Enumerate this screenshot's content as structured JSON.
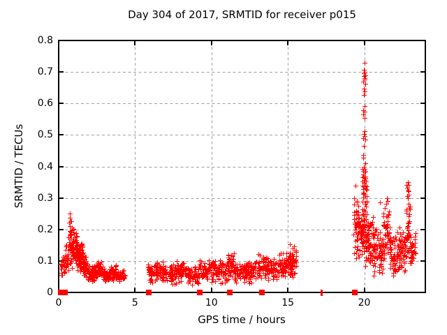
{
  "chart_data": {
    "type": "scatter",
    "title": "Day 304 of 2017, SRMTID for receiver p015",
    "xlabel": "GPS time / hours",
    "ylabel": "SRMTID / TECUs",
    "xlim": [
      0,
      24
    ],
    "ylim": [
      0,
      0.8
    ],
    "xticks": [
      0,
      5,
      10,
      15,
      20
    ],
    "yticks": [
      0,
      0.1,
      0.2,
      0.3,
      0.4,
      0.5,
      0.6,
      0.7,
      0.8
    ],
    "xtick_labels": [
      "0",
      "5",
      "10",
      "15",
      "20"
    ],
    "ytick_labels": [
      "0",
      "0.1",
      "0.2",
      "0.3",
      "0.4",
      "0.5",
      "0.6",
      "0.7",
      "0.8"
    ],
    "grid": {
      "show": true,
      "style": "dashed",
      "color": "#9e9e9e"
    },
    "marker": {
      "shape": "plus",
      "color": "#ff0000",
      "size": 7
    },
    "frame_color": "#000000",
    "legend": null,
    "seed": 20171304,
    "clusters": [
      {
        "x0": 0.1,
        "x1": 0.45,
        "ylo": 0.05,
        "yhi": 0.13,
        "n": 25
      },
      {
        "x0": 0.45,
        "x1": 0.65,
        "ylo": 0.05,
        "yhi": 0.16,
        "n": 25
      },
      {
        "x0": 0.65,
        "x1": 0.85,
        "ylo": 0.08,
        "yhi": 0.24,
        "n": 22
      },
      {
        "x0": 0.8,
        "x1": 1.2,
        "ylo": 0.07,
        "yhi": 0.21,
        "n": 70
      },
      {
        "x0": 1.2,
        "x1": 1.6,
        "ylo": 0.06,
        "yhi": 0.17,
        "n": 70
      },
      {
        "x0": 1.6,
        "x1": 1.9,
        "ylo": 0.04,
        "yhi": 0.12,
        "n": 45
      },
      {
        "x0": 1.9,
        "x1": 2.4,
        "ylo": 0.03,
        "yhi": 0.09,
        "n": 60
      },
      {
        "x0": 2.4,
        "x1": 2.9,
        "ylo": 0.035,
        "yhi": 0.105,
        "n": 55
      },
      {
        "x0": 2.9,
        "x1": 3.4,
        "ylo": 0.03,
        "yhi": 0.08,
        "n": 50
      },
      {
        "x0": 3.4,
        "x1": 3.8,
        "ylo": 0.035,
        "yhi": 0.09,
        "n": 45
      },
      {
        "x0": 3.8,
        "x1": 4.35,
        "ylo": 0.03,
        "yhi": 0.075,
        "n": 45
      },
      {
        "x0": 5.85,
        "x1": 6.4,
        "ylo": 0.025,
        "yhi": 0.1,
        "n": 50
      },
      {
        "x0": 6.4,
        "x1": 7.0,
        "ylo": 0.03,
        "yhi": 0.11,
        "n": 55
      },
      {
        "x0": 7.0,
        "x1": 7.7,
        "ylo": 0.025,
        "yhi": 0.095,
        "n": 55
      },
      {
        "x0": 7.7,
        "x1": 8.4,
        "ylo": 0.03,
        "yhi": 0.105,
        "n": 55
      },
      {
        "x0": 8.4,
        "x1": 9.15,
        "ylo": 0.02,
        "yhi": 0.09,
        "n": 55
      },
      {
        "x0": 9.2,
        "x1": 9.9,
        "ylo": 0.03,
        "yhi": 0.105,
        "n": 55
      },
      {
        "x0": 9.9,
        "x1": 10.6,
        "ylo": 0.03,
        "yhi": 0.11,
        "n": 55
      },
      {
        "x0": 10.6,
        "x1": 11.1,
        "ylo": 0.025,
        "yhi": 0.1,
        "n": 40
      },
      {
        "x0": 11.1,
        "x1": 11.5,
        "ylo": 0.04,
        "yhi": 0.145,
        "n": 40
      },
      {
        "x0": 11.5,
        "x1": 12.3,
        "ylo": 0.03,
        "yhi": 0.1,
        "n": 60
      },
      {
        "x0": 12.3,
        "x1": 13.0,
        "ylo": 0.025,
        "yhi": 0.105,
        "n": 55
      },
      {
        "x0": 13.0,
        "x1": 13.6,
        "ylo": 0.035,
        "yhi": 0.13,
        "n": 50
      },
      {
        "x0": 13.6,
        "x1": 14.3,
        "ylo": 0.03,
        "yhi": 0.11,
        "n": 55
      },
      {
        "x0": 14.3,
        "x1": 14.9,
        "ylo": 0.035,
        "yhi": 0.13,
        "n": 50
      },
      {
        "x0": 14.9,
        "x1": 15.3,
        "ylo": 0.04,
        "yhi": 0.14,
        "n": 40
      },
      {
        "x0": 15.1,
        "x1": 15.55,
        "ylo": 0.05,
        "yhi": 0.165,
        "n": 35
      },
      {
        "x0": 19.3,
        "x1": 19.55,
        "ylo": 0.1,
        "yhi": 0.38,
        "n": 30
      },
      {
        "x0": 19.5,
        "x1": 20.0,
        "ylo": 0.08,
        "yhi": 0.3,
        "n": 70
      },
      {
        "x0": 19.85,
        "x1": 20.2,
        "ylo": 0.14,
        "yhi": 0.46,
        "n": 45
      },
      {
        "x0": 20.0,
        "x1": 20.6,
        "ylo": 0.07,
        "yhi": 0.25,
        "n": 70
      },
      {
        "x0": 20.6,
        "x1": 21.2,
        "ylo": 0.05,
        "yhi": 0.22,
        "n": 65
      },
      {
        "x0": 21.2,
        "x1": 21.7,
        "ylo": 0.06,
        "yhi": 0.3,
        "n": 55
      },
      {
        "x0": 21.7,
        "x1": 22.3,
        "ylo": 0.04,
        "yhi": 0.2,
        "n": 65
      },
      {
        "x0": 22.3,
        "x1": 22.75,
        "ylo": 0.05,
        "yhi": 0.22,
        "n": 50
      },
      {
        "x0": 22.75,
        "x1": 23.05,
        "ylo": 0.07,
        "yhi": 0.35,
        "n": 40
      },
      {
        "x0": 23.0,
        "x1": 23.35,
        "ylo": 0.07,
        "yhi": 0.2,
        "n": 30
      }
    ],
    "spike_points": [
      [
        0.72,
        0.25
      ],
      [
        0.75,
        0.237
      ],
      [
        0.7,
        0.222
      ],
      [
        0.74,
        0.21
      ],
      [
        0.71,
        0.196
      ],
      [
        0.76,
        0.186
      ],
      [
        0.72,
        0.171
      ],
      [
        0.7,
        0.159
      ],
      [
        0.75,
        0.152
      ],
      [
        0.73,
        0.143
      ],
      [
        20.0,
        0.73
      ],
      [
        19.96,
        0.706
      ],
      [
        20.03,
        0.7
      ],
      [
        19.99,
        0.696
      ],
      [
        20.05,
        0.69
      ],
      [
        19.97,
        0.686
      ],
      [
        20.01,
        0.681
      ],
      [
        20.04,
        0.676
      ],
      [
        19.94,
        0.67
      ],
      [
        20.07,
        0.662
      ],
      [
        19.99,
        0.648
      ],
      [
        20.02,
        0.638
      ],
      [
        19.97,
        0.627
      ],
      [
        20.0,
        0.592
      ],
      [
        19.95,
        0.579
      ],
      [
        20.03,
        0.573
      ],
      [
        19.91,
        0.566
      ],
      [
        20.0,
        0.553
      ],
      [
        20.0,
        0.512
      ],
      [
        19.96,
        0.502
      ],
      [
        20.02,
        0.496
      ],
      [
        19.94,
        0.49
      ],
      [
        20.06,
        0.486
      ],
      [
        19.99,
        0.466
      ],
      [
        20.05,
        0.411
      ],
      [
        19.96,
        0.399
      ],
      [
        20.0,
        0.393
      ],
      [
        19.91,
        0.386
      ],
      [
        20.1,
        0.352
      ],
      [
        19.97,
        0.336
      ],
      [
        20.14,
        0.326
      ],
      [
        19.91,
        0.316
      ],
      [
        20.05,
        0.306
      ],
      [
        21.48,
        0.3
      ],
      [
        21.52,
        0.29
      ],
      [
        21.45,
        0.282
      ],
      [
        21.05,
        0.285
      ],
      [
        22.86,
        0.35
      ],
      [
        22.9,
        0.342
      ],
      [
        22.83,
        0.332
      ],
      [
        22.92,
        0.322
      ],
      [
        22.88,
        0.31
      ]
    ],
    "zero_markers": [
      {
        "x": 0.12,
        "style": "square"
      },
      {
        "x": 0.42,
        "style": "square"
      },
      {
        "x": 5.9,
        "style": "square"
      },
      {
        "x": 9.25,
        "style": "square"
      },
      {
        "x": 11.2,
        "style": "square"
      },
      {
        "x": 13.3,
        "style": "square"
      },
      {
        "x": 17.2,
        "style": "thin"
      },
      {
        "x": 19.4,
        "style": "square"
      }
    ]
  }
}
